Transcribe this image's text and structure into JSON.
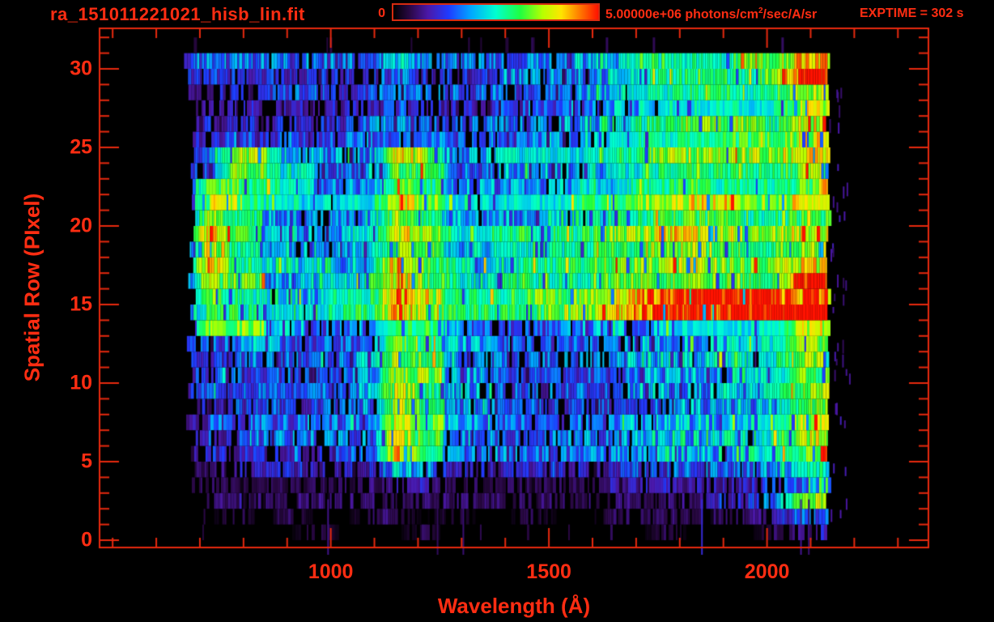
{
  "header": {
    "filename": "ra_151011221021_hisb_lin.fit",
    "colorbar": {
      "min_label": "0",
      "max_label_prefix": "5.00000e+06 photons/cm",
      "max_label_sup": "2",
      "max_label_suffix": "/sec/A/sr"
    },
    "exptime_label": "EXPTIME = 302 s"
  },
  "colors": {
    "text_red": "#ff2d12",
    "frame_red": "#e8290e",
    "background": "#000000"
  },
  "chart_data": {
    "type": "heatmap",
    "title": "ra_151011221021_hisb_lin.fit",
    "xlabel": "Wavelength (Å)",
    "ylabel": "Spatial Row (PIxel)",
    "xlim": [
      470,
      2370
    ],
    "ylim": [
      -0.46,
      32.6
    ],
    "x_ticks_major": [
      1000,
      1500,
      2000
    ],
    "x_tick_labels": [
      "1000",
      "1500",
      "2000"
    ],
    "x_minor_step": 100,
    "x_minor_range": [
      500,
      2300
    ],
    "y_ticks_major": [
      0,
      5,
      10,
      15,
      20,
      25,
      30
    ],
    "y_tick_labels": [
      "0",
      "5",
      "10",
      "15",
      "20",
      "25",
      "30"
    ],
    "y_minor_step": 1,
    "y_minor_range": [
      0,
      32
    ],
    "grid_on": false,
    "legend": "none",
    "exposure_s": 302,
    "colorbar": {
      "min": 0,
      "max": 5000000,
      "units": "photons/cm2/sec/A/sr",
      "palette": "rainbow",
      "stop_pos": [
        0,
        0.08,
        0.17,
        0.27,
        0.38,
        0.5,
        0.62,
        0.73,
        0.82,
        0.91,
        1.0
      ],
      "stop_hex": [
        "#000000",
        "#2a0845",
        "#4b18a9",
        "#1f3bff",
        "#00a8ff",
        "#00ffd0",
        "#20ff40",
        "#b8ff00",
        "#ffe400",
        "#ff7a00",
        "#ff1200"
      ]
    },
    "data_extent": {
      "wavelength": [
        660,
        2143
      ],
      "rows": [
        0,
        31
      ]
    },
    "grid_bins": {
      "lambda_start": 660,
      "lambda_step": 61.8,
      "n_cols": 24,
      "scale": "digit/10 of colorbar max, A=10",
      "rows_bottom_to_top": [
        "000001000100000000100012",
        "001010011010010011111123",
        "011111111111111111112236",
        "111111112211111122222234",
        "112222225322222223333345",
        "122222338533333334444456",
        "222333338533333334444457",
        "223333338544333334444457",
        "223333348644333333444457",
        "233333348644333334444557",
        "233333348544333334444557",
        "223333347543333334445457",
        "233533337544333334444557",
        "377543347543333444555558",
        "3554445586555566789999AA",
        "3654445586555666789AAA98",
        "27544445865455556666666A",
        "285444448654455566676667",
        "285443447644555566776667",
        "286443447644555566777667",
        "286444448644455566777667",
        "276443447644444556677667",
        "277543447644444556676667",
        "237743337643444455666667",
        "236633337633444455666667",
        "223232333333334445566667",
        "222222233323333445566657",
        "122222223222333344555558",
        "222233233333333445566567",
        "222222223222333344555569",
        "333333334333333445555668",
        "000000000000000000000000"
      ]
    },
    "features": [
      {
        "name": "lyman-alpha-line",
        "lambda": [
          1196,
          1258
        ],
        "rows": [
          5,
          23
        ],
        "t": 0.62,
        "patchy": true
      },
      {
        "name": "lyman-beta-line",
        "lambda": [
          1020,
          1038
        ],
        "rows": [
          13,
          23
        ],
        "t": 0.36,
        "patchy": true
      },
      {
        "name": "oi-1304-line",
        "lambda": [
          1296,
          1320
        ],
        "rows": [
          6,
          23
        ],
        "t": 0.32,
        "patchy": true
      },
      {
        "name": "arc-vertical",
        "lambda": [
          758,
          846
        ],
        "rows": [
          13,
          22
        ],
        "t": 0.58,
        "patchy": true
      },
      {
        "name": "arc-top",
        "lambda": [
          822,
          962
        ],
        "rows": [
          22,
          23
        ],
        "t": 0.55,
        "patchy": true
      },
      {
        "name": "arc-bottom",
        "lambda": [
          752,
          872
        ],
        "rows": [
          13,
          14
        ],
        "t": 0.5,
        "patchy": true
      },
      {
        "name": "arc-tail",
        "lambda": [
          868,
          940
        ],
        "rows": [
          13,
          13
        ],
        "t": 0.42
      },
      {
        "name": "continuum-streak-upper",
        "lambda": [
          1380,
          2143
        ],
        "rows": [
          15,
          15
        ],
        "t0": 0.3,
        "t1": 0.97,
        "ramp": true
      },
      {
        "name": "continuum-streak-lower",
        "lambda": [
          1470,
          2143
        ],
        "rows": [
          14,
          14
        ],
        "t0": 0.28,
        "t1": 1.0,
        "ramp": true
      },
      {
        "name": "edge-column",
        "lambda": [
          2120,
          2143
        ],
        "rows": [
          2,
          30
        ],
        "t": 0.6,
        "patchy": true,
        "spikes": true
      }
    ],
    "spike_columns": [
      {
        "lambda": 992,
        "t": 0.14
      },
      {
        "lambda": 1243,
        "t": 0.1
      },
      {
        "lambda": 1302,
        "t": 0.12
      },
      {
        "lambda": 1849,
        "t": 0.22
      },
      {
        "lambda": 2076,
        "t": 0.15
      },
      {
        "lambda": 2094,
        "t": 0.12
      }
    ]
  }
}
